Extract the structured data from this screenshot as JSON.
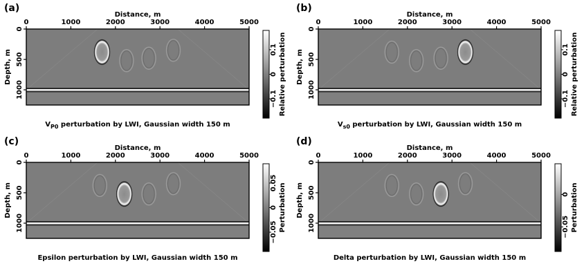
{
  "figure": {
    "panels": [
      {
        "label": "(a)",
        "xlabel": "Distance, m",
        "ylabel": "Depth, m",
        "xticks": [
          "0",
          "1000",
          "2000",
          "3000",
          "4000",
          "5000"
        ],
        "yticks": [
          "0",
          "500",
          "1000"
        ],
        "caption_pre": "V",
        "caption_sub": "P0",
        "caption_post": " perturbation by LWI, Gaussian width 150 m",
        "colorbar_label": "Relative perturbation",
        "colorbar_ticks": [
          "0.1",
          "0",
          "−0.1"
        ],
        "image": {
          "layer_depth": 1000,
          "strong_anomaly": {
            "x": 1700,
            "z": 380,
            "sign": "positive"
          },
          "ghost_anomalies": [
            {
              "x": 2250,
              "z": 520
            },
            {
              "x": 2750,
              "z": 480
            },
            {
              "x": 3300,
              "z": 350
            }
          ]
        }
      },
      {
        "label": "(b)",
        "xlabel": "Distance, m",
        "ylabel": "Depth, m",
        "xticks": [
          "0",
          "1000",
          "2000",
          "3000",
          "4000",
          "5000"
        ],
        "yticks": [
          "0",
          "500",
          "1000"
        ],
        "caption_pre": "V",
        "caption_sub": "s0",
        "caption_post": " perturbation by LWI, Gaussian width 150 m",
        "colorbar_label": "Relative perturbation",
        "colorbar_ticks": [
          "0.1",
          "0",
          "−0.1"
        ],
        "image": {
          "layer_depth": 1000,
          "strong_anomaly": {
            "x": 3300,
            "z": 380,
            "sign": "positive"
          },
          "ghost_anomalies": [
            {
              "x": 1650,
              "z": 380
            },
            {
              "x": 2200,
              "z": 520
            },
            {
              "x": 2750,
              "z": 480
            }
          ]
        }
      },
      {
        "label": "(c)",
        "xlabel": "Distance, m",
        "ylabel": "Depth, m",
        "xticks": [
          "0",
          "1000",
          "2000",
          "3000",
          "4000",
          "5000"
        ],
        "yticks": [
          "0",
          "500",
          "1000"
        ],
        "caption_pre": "Epsilon perturbation by LWI, Gaussian width 150 m",
        "caption_sub": "",
        "caption_post": "",
        "colorbar_label": "Perturbation",
        "colorbar_ticks": [
          "0.05",
          "0",
          "−0.05"
        ],
        "image": {
          "layer_depth": 1000,
          "strong_anomaly": {
            "x": 2200,
            "z": 520,
            "sign": "positive"
          },
          "ghost_anomalies": [
            {
              "x": 1650,
              "z": 380
            },
            {
              "x": 2750,
              "z": 520
            },
            {
              "x": 3300,
              "z": 350
            }
          ]
        }
      },
      {
        "label": "(d)",
        "xlabel": "Distance, m",
        "ylabel": "Depth, m",
        "xticks": [
          "0",
          "1000",
          "2000",
          "3000",
          "4000",
          "5000"
        ],
        "yticks": [
          "0",
          "500",
          "1000"
        ],
        "caption_pre": "Delta perturbation by LWI, Gaussian width 150 m",
        "caption_sub": "",
        "caption_post": "",
        "colorbar_label": "Perturbation",
        "colorbar_ticks": [
          "0",
          "−0.05"
        ],
        "image": {
          "layer_depth": 1000,
          "strong_anomaly": {
            "x": 2750,
            "z": 520,
            "sign": "positive"
          },
          "ghost_anomalies": [
            {
              "x": 1650,
              "z": 380
            },
            {
              "x": 2200,
              "z": 520
            },
            {
              "x": 3300,
              "z": 350
            }
          ]
        }
      }
    ]
  }
}
